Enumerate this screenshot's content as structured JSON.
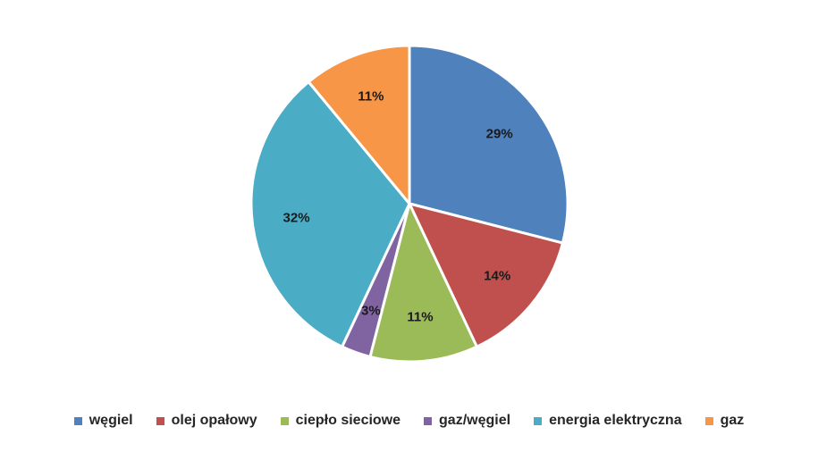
{
  "chart_data": {
    "type": "pie",
    "title": "",
    "categories": [
      "węgiel",
      "olej opałowy",
      "ciepło sieciowe",
      "gaz/węgiel",
      "energia elektryczna",
      "gaz"
    ],
    "values": [
      29,
      14,
      11,
      3,
      32,
      11
    ],
    "data_labels": [
      "29%",
      "14%",
      "11%",
      "3%",
      "32%",
      "11%"
    ],
    "colors": [
      "#4F81BD",
      "#C0504D",
      "#9BBB59",
      "#8064A2",
      "#4BACC6",
      "#F79646"
    ],
    "legend_position": "bottom",
    "start_angle": "12 o'clock",
    "direction": "clockwise"
  }
}
